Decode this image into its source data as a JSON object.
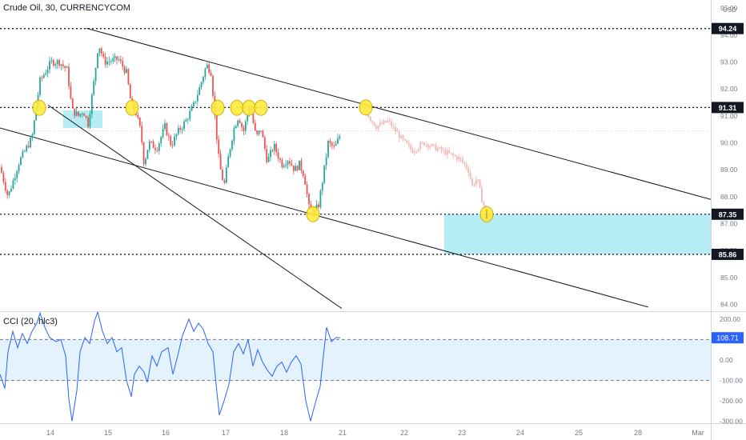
{
  "symbol_label": "Crude Oil, 30, CURRENCYCOM",
  "currency": "USD",
  "indicator_label": "CCI (20, hlc3)",
  "colors": {
    "up": "#26a69a",
    "down": "#ef5350",
    "projection": "#efb7b7",
    "zone": "#b2ebf2",
    "cci_line": "#2962ff",
    "cci_band": "#e3f2fd",
    "trendline": "#131722",
    "marker_fill": "#ffeb3b",
    "marker_stroke": "#c9a800",
    "level_tag_bg": "#131722",
    "cci_tag_bg": "#2962ff"
  },
  "price_axis": {
    "ticks": [
      "95.00",
      "94.00",
      "93.00",
      "92.00",
      "91.00",
      "90.00",
      "89.00",
      "88.00",
      "87.00",
      "86.00",
      "85.00",
      "84.00"
    ]
  },
  "cci_axis": {
    "ticks": [
      "200.00",
      "100.00",
      "0.00",
      "-100.00",
      "-200.00",
      "-300.00"
    ],
    "current": "108.71"
  },
  "time_axis": {
    "labels": [
      "14",
      "15",
      "16",
      "17",
      "18",
      "21",
      "22",
      "23",
      "24",
      "25",
      "28",
      "Mar"
    ]
  },
  "chart_data": [
    {
      "type": "candlestick",
      "title": "Crude Oil, 30, CURRENCYCOM",
      "y_range": [
        83.75,
        95.3
      ],
      "horizontal_levels": [
        {
          "value": 94.24,
          "label": "94.24"
        },
        {
          "value": 91.31,
          "label": "91.31"
        },
        {
          "value": 87.35,
          "label": "87.35"
        },
        {
          "value": 85.86,
          "label": "85.86"
        }
      ],
      "price_path": [
        [
          0,
          89.1
        ],
        [
          10,
          88.0
        ],
        [
          24,
          89.3
        ],
        [
          40,
          90.2
        ],
        [
          50,
          92.3
        ],
        [
          56,
          92.6
        ],
        [
          64,
          93.0
        ],
        [
          74,
          93.0
        ],
        [
          84,
          92.7
        ],
        [
          90,
          91.2
        ],
        [
          98,
          91.0
        ],
        [
          104,
          91.2
        ],
        [
          110,
          90.7
        ],
        [
          118,
          92.4
        ],
        [
          123,
          93.7
        ],
        [
          130,
          93.0
        ],
        [
          148,
          93.1
        ],
        [
          158,
          92.6
        ],
        [
          164,
          91.4
        ],
        [
          170,
          91.1
        ],
        [
          176,
          90.4
        ],
        [
          180,
          89.2
        ],
        [
          186,
          90.0
        ],
        [
          196,
          89.8
        ],
        [
          206,
          90.6
        ],
        [
          214,
          89.9
        ],
        [
          222,
          90.4
        ],
        [
          232,
          90.8
        ],
        [
          242,
          91.4
        ],
        [
          250,
          92.1
        ],
        [
          258,
          92.9
        ],
        [
          264,
          92.6
        ],
        [
          268,
          91.1
        ],
        [
          274,
          89.2
        ],
        [
          280,
          88.4
        ],
        [
          286,
          89.6
        ],
        [
          292,
          90.5
        ],
        [
          298,
          91.0
        ],
        [
          304,
          90.4
        ],
        [
          312,
          91.4
        ],
        [
          320,
          90.2
        ],
        [
          326,
          90.5
        ],
        [
          334,
          89.3
        ],
        [
          342,
          89.9
        ],
        [
          352,
          89.2
        ],
        [
          360,
          89.4
        ],
        [
          368,
          89.0
        ],
        [
          374,
          89.2
        ],
        [
          380,
          88.8
        ],
        [
          386,
          87.6
        ],
        [
          392,
          87.4
        ],
        [
          398,
          87.7
        ],
        [
          404,
          88.8
        ],
        [
          410,
          90.0
        ],
        [
          418,
          89.8
        ],
        [
          425,
          90.3
        ]
      ],
      "projection_path": [
        [
          458,
          91.1
        ],
        [
          470,
          90.6
        ],
        [
          485,
          90.8
        ],
        [
          500,
          90.2
        ],
        [
          515,
          89.7
        ],
        [
          530,
          90.0
        ],
        [
          545,
          89.8
        ],
        [
          560,
          89.6
        ],
        [
          575,
          89.4
        ],
        [
          585,
          89.0
        ],
        [
          590,
          88.4
        ],
        [
          596,
          88.7
        ],
        [
          602,
          87.9
        ],
        [
          608,
          87.35
        ]
      ],
      "zones": [
        {
          "x_range": [
            79,
            128
          ],
          "price_range": [
            90.55,
            91.2
          ]
        },
        {
          "x_range": [
            555,
            888
          ],
          "price_range": [
            85.86,
            87.35
          ]
        }
      ],
      "trendlines": [
        {
          "from": [
            108,
            94.25
          ],
          "to": [
            888,
            87.9
          ]
        },
        {
          "from": [
            0,
            90.55
          ],
          "to": [
            810,
            83.9
          ]
        },
        {
          "from": [
            60,
            91.4
          ],
          "to": [
            427,
            83.85
          ]
        }
      ],
      "markers": [
        {
          "x": 49,
          "price": 91.3
        },
        {
          "x": 165,
          "price": 91.3
        },
        {
          "x": 272,
          "price": 91.3
        },
        {
          "x": 296,
          "price": 91.3
        },
        {
          "x": 311,
          "price": 91.3
        },
        {
          "x": 326,
          "price": 91.3
        },
        {
          "x": 391,
          "price": 87.35
        },
        {
          "x": 457,
          "price": 91.31
        },
        {
          "x": 608,
          "price": 87.35
        }
      ]
    },
    {
      "type": "line",
      "title": "CCI (20, hlc3)",
      "y_range": [
        -310,
        235
      ],
      "band": [
        -100,
        100
      ],
      "series": [
        {
          "values": [
            [
              0,
              -70
            ],
            [
              6,
              -140
            ],
            [
              10,
              40
            ],
            [
              16,
              140
            ],
            [
              22,
              60
            ],
            [
              28,
              130
            ],
            [
              34,
              80
            ],
            [
              40,
              140
            ],
            [
              46,
              180
            ],
            [
              50,
              230
            ],
            [
              56,
              160
            ],
            [
              62,
              110
            ],
            [
              70,
              90
            ],
            [
              76,
              100
            ],
            [
              82,
              20
            ],
            [
              86,
              -190
            ],
            [
              90,
              -300
            ],
            [
              96,
              -150
            ],
            [
              100,
              40
            ],
            [
              106,
              110
            ],
            [
              112,
              80
            ],
            [
              118,
              190
            ],
            [
              122,
              235
            ],
            [
              128,
              140
            ],
            [
              134,
              80
            ],
            [
              140,
              110
            ],
            [
              146,
              40
            ],
            [
              152,
              60
            ],
            [
              158,
              -100
            ],
            [
              164,
              -180
            ],
            [
              168,
              -70
            ],
            [
              174,
              -30
            ],
            [
              180,
              -60
            ],
            [
              184,
              -110
            ],
            [
              190,
              20
            ],
            [
              196,
              -30
            ],
            [
              202,
              40
            ],
            [
              210,
              60
            ],
            [
              216,
              -70
            ],
            [
              222,
              20
            ],
            [
              228,
              120
            ],
            [
              236,
              200
            ],
            [
              242,
              140
            ],
            [
              248,
              180
            ],
            [
              254,
              150
            ],
            [
              260,
              80
            ],
            [
              266,
              40
            ],
            [
              270,
              -120
            ],
            [
              274,
              -270
            ],
            [
              280,
              -200
            ],
            [
              286,
              -120
            ],
            [
              292,
              40
            ],
            [
              298,
              80
            ],
            [
              304,
              30
            ],
            [
              310,
              100
            ],
            [
              316,
              -30
            ],
            [
              322,
              50
            ],
            [
              328,
              -10
            ],
            [
              334,
              -50
            ],
            [
              340,
              -80
            ],
            [
              346,
              -30
            ],
            [
              352,
              -10
            ],
            [
              358,
              -60
            ],
            [
              364,
              -10
            ],
            [
              370,
              20
            ],
            [
              376,
              -20
            ],
            [
              382,
              -200
            ],
            [
              388,
              -300
            ],
            [
              394,
              -210
            ],
            [
              400,
              -130
            ],
            [
              404,
              20
            ],
            [
              408,
              160
            ],
            [
              414,
              90
            ],
            [
              420,
              110
            ],
            [
              425,
              108.71
            ]
          ]
        }
      ]
    }
  ]
}
